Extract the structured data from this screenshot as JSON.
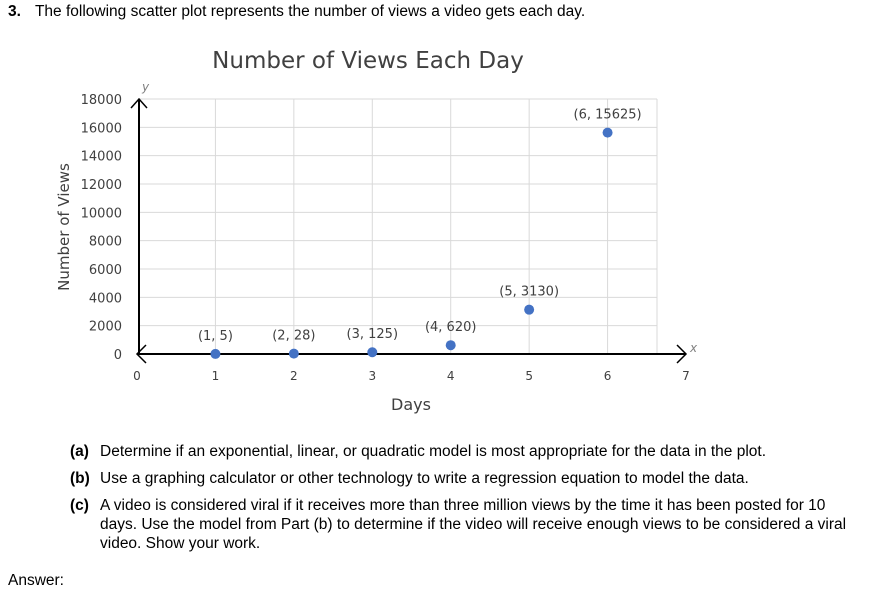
{
  "question": {
    "number": "3.",
    "text": "The following scatter plot represents the number of views a video gets each day."
  },
  "chart_data": {
    "type": "scatter",
    "title": "Number of Views Each Day",
    "xlabel": "Days",
    "ylabel": "Number of Views",
    "x_axis_arrow_label": "x",
    "y_axis_arrow_label": "y",
    "xlim": [
      0,
      7
    ],
    "ylim": [
      0,
      18000
    ],
    "x_ticks": [
      "0",
      "1",
      "2",
      "3",
      "4",
      "5",
      "6",
      "7"
    ],
    "y_ticks": [
      "0",
      "2000",
      "4000",
      "6000",
      "8000",
      "10000",
      "12000",
      "14000",
      "16000",
      "18000"
    ],
    "grid": true,
    "point_color": "#4472C4",
    "points": [
      {
        "x": 1,
        "y": 5,
        "label": "(1, 5)"
      },
      {
        "x": 2,
        "y": 28,
        "label": "(2, 28)"
      },
      {
        "x": 3,
        "y": 125,
        "label": "(3, 125)"
      },
      {
        "x": 4,
        "y": 620,
        "label": "(4, 620)"
      },
      {
        "x": 5,
        "y": 3130,
        "label": "(5, 3130)"
      },
      {
        "x": 6,
        "y": 15625,
        "label": "(6, 15625)"
      }
    ]
  },
  "parts": [
    {
      "label": "(a)",
      "text": "Determine if an exponential, linear, or quadratic model is most appropriate for the data in the plot."
    },
    {
      "label": "(b)",
      "text": "Use a graphing calculator or other technology to write a regression equation to model the data."
    },
    {
      "label": "(c)",
      "text": "A video is considered viral if it receives more than three million views by the time it has been posted for 10 days. Use the model from Part (b) to determine if the video will receive enough views to be considered a viral video. Show your work."
    }
  ],
  "answer_label": "Answer:"
}
